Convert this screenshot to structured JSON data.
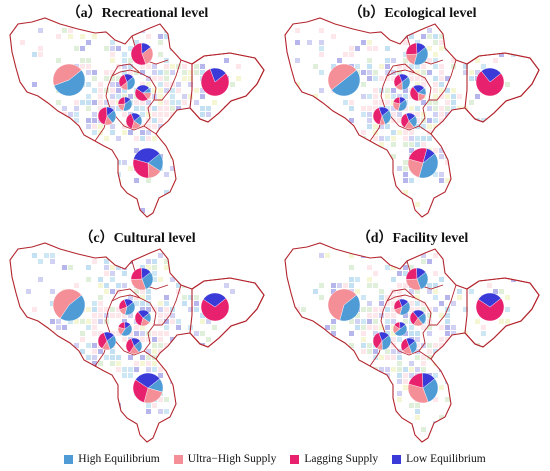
{
  "panels": [
    {
      "title": "（a）Recreational level",
      "pies": [
        {
          "name": "pie-west",
          "values": [
            55,
            45,
            0,
            0
          ]
        },
        {
          "name": "pie-north",
          "values": [
            0,
            30,
            55,
            15
          ]
        },
        {
          "name": "pie-east",
          "values": [
            0,
            0,
            80,
            20
          ]
        },
        {
          "name": "pie-center-1",
          "values": [
            35,
            15,
            30,
            20
          ]
        },
        {
          "name": "pie-center-2",
          "values": [
            10,
            15,
            45,
            30
          ]
        },
        {
          "name": "pie-center-3",
          "values": [
            25,
            15,
            45,
            15
          ]
        },
        {
          "name": "pie-center-4",
          "values": [
            40,
            20,
            25,
            15
          ]
        },
        {
          "name": "pie-center-5",
          "values": [
            20,
            20,
            40,
            20
          ]
        },
        {
          "name": "pie-south",
          "values": [
            20,
            15,
            30,
            35
          ]
        }
      ]
    },
    {
      "title": "（b）Ecological level",
      "pies": [
        {
          "name": "pie-west",
          "values": [
            50,
            50,
            0,
            0
          ]
        },
        {
          "name": "pie-north",
          "values": [
            40,
            20,
            25,
            15
          ]
        },
        {
          "name": "pie-east",
          "values": [
            0,
            0,
            75,
            25
          ]
        },
        {
          "name": "pie-center-1",
          "values": [
            35,
            15,
            30,
            20
          ]
        },
        {
          "name": "pie-center-2",
          "values": [
            15,
            20,
            40,
            25
          ]
        },
        {
          "name": "pie-center-3",
          "values": [
            30,
            10,
            40,
            20
          ]
        },
        {
          "name": "pie-center-4",
          "values": [
            40,
            25,
            20,
            15
          ]
        },
        {
          "name": "pie-center-5",
          "values": [
            25,
            20,
            35,
            20
          ]
        },
        {
          "name": "pie-south",
          "values": [
            40,
            25,
            25,
            10
          ]
        }
      ]
    },
    {
      "title": "（c）Cultural level",
      "pies": [
        {
          "name": "pie-west",
          "values": [
            45,
            55,
            0,
            0
          ]
        },
        {
          "name": "pie-north",
          "values": [
            30,
            30,
            25,
            15
          ]
        },
        {
          "name": "pie-east",
          "values": [
            0,
            0,
            70,
            30
          ]
        },
        {
          "name": "pie-center-1",
          "values": [
            40,
            15,
            25,
            20
          ]
        },
        {
          "name": "pie-center-2",
          "values": [
            20,
            20,
            35,
            25
          ]
        },
        {
          "name": "pie-center-3",
          "values": [
            30,
            15,
            35,
            20
          ]
        },
        {
          "name": "pie-center-4",
          "values": [
            45,
            20,
            20,
            15
          ]
        },
        {
          "name": "pie-center-5",
          "values": [
            25,
            20,
            35,
            20
          ]
        },
        {
          "name": "pie-south",
          "values": [
            15,
            25,
            30,
            30
          ]
        }
      ]
    },
    {
      "title": "（d）Facility level",
      "pies": [
        {
          "name": "pie-west",
          "values": [
            40,
            60,
            0,
            0
          ]
        },
        {
          "name": "pie-north",
          "values": [
            30,
            30,
            25,
            15
          ]
        },
        {
          "name": "pie-east",
          "values": [
            0,
            0,
            70,
            30
          ]
        },
        {
          "name": "pie-center-1",
          "values": [
            40,
            15,
            25,
            20
          ]
        },
        {
          "name": "pie-center-2",
          "values": [
            25,
            20,
            30,
            25
          ]
        },
        {
          "name": "pie-center-3",
          "values": [
            35,
            10,
            35,
            20
          ]
        },
        {
          "name": "pie-center-4",
          "values": [
            50,
            20,
            15,
            15
          ]
        },
        {
          "name": "pie-center-5",
          "values": [
            30,
            20,
            30,
            20
          ]
        },
        {
          "name": "pie-south",
          "values": [
            30,
            35,
            20,
            15
          ]
        }
      ]
    }
  ],
  "categories": [
    {
      "label": "High Equilibrium",
      "color": "#4e9bd6"
    },
    {
      "label": "Ultra−High Supply",
      "color": "#f48f98"
    },
    {
      "label": "Lagging Supply",
      "color": "#e8216e"
    },
    {
      "label": "Low Equilibrium",
      "color": "#3a3ad8"
    }
  ],
  "boundary_color": "#b3262e"
}
